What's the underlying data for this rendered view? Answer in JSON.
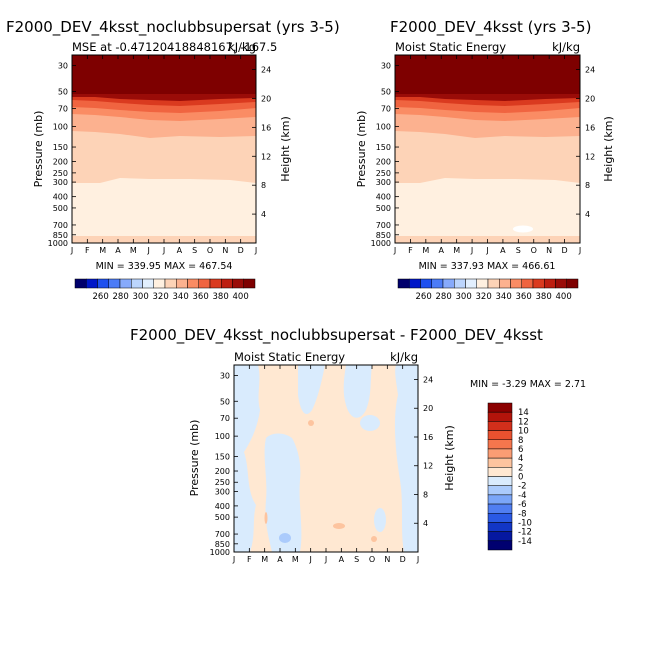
{
  "chart_data": [
    {
      "type": "heatmap",
      "title": "F2000_DEV_4ksst_noclubbsupersat (yrs 3-5)",
      "subtitle_left": "MSE at -0.47120418848167,   -167.5",
      "subtitle_right": "kJ/kg",
      "ylabel": "Pressure (mb)",
      "ylabel_right": "Height (km)",
      "minmax": "MIN = 339.95   MAX = 467.54",
      "x_ticks": [
        "J",
        "F",
        "M",
        "A",
        "M",
        "J",
        "J",
        "A",
        "S",
        "O",
        "N",
        "D",
        "J"
      ],
      "y_ticks": [
        30,
        50,
        70,
        100,
        150,
        200,
        250,
        300,
        400,
        500,
        700,
        850,
        1000
      ],
      "y_ticks_right": [
        24,
        20,
        16,
        12,
        8,
        4
      ],
      "colorbar_ticks": [
        260,
        280,
        300,
        320,
        340,
        360,
        380,
        400
      ],
      "colorbar_colors": [
        "#00006b",
        "#0017c8",
        "#1e50ef",
        "#4c7cf7",
        "#87aafb",
        "#bcd5fd",
        "#e2effe",
        "#fff0e0",
        "#fdd3b7",
        "#fcb18f",
        "#fa8c64",
        "#f06440",
        "#da3a1f",
        "#bd1e10",
        "#9a0c08",
        "#7e0000"
      ]
    },
    {
      "type": "heatmap",
      "title": "F2000_DEV_4ksst (yrs 3-5)",
      "subtitle_left": "Moist Static Energy",
      "subtitle_right": "kJ/kg",
      "ylabel": "Pressure (mb)",
      "ylabel_right": "Height (km)",
      "minmax": "MIN = 337.93   MAX = 466.61",
      "x_ticks": [
        "J",
        "F",
        "M",
        "A",
        "M",
        "J",
        "J",
        "A",
        "S",
        "O",
        "N",
        "D",
        "J"
      ],
      "y_ticks": [
        30,
        50,
        70,
        100,
        150,
        200,
        250,
        300,
        400,
        500,
        700,
        850,
        1000
      ],
      "y_ticks_right": [
        24,
        20,
        16,
        12,
        8,
        4
      ],
      "colorbar_ticks": [
        260,
        280,
        300,
        320,
        340,
        360,
        380,
        400
      ],
      "colorbar_colors": [
        "#00006b",
        "#0017c8",
        "#1e50ef",
        "#4c7cf7",
        "#87aafb",
        "#bcd5fd",
        "#e2effe",
        "#fff0e0",
        "#fdd3b7",
        "#fcb18f",
        "#fa8c64",
        "#f06440",
        "#da3a1f",
        "#bd1e10",
        "#9a0c08",
        "#7e0000"
      ]
    },
    {
      "type": "heatmap",
      "title": "F2000_DEV_4ksst_noclubbsupersat - F2000_DEV_4ksst",
      "subtitle_left": "Moist Static Energy",
      "subtitle_right": "kJ/kg",
      "ylabel": "Pressure (mb)",
      "ylabel_right": "Height (km)",
      "minmax": "MIN =  -3.29  MAX =    2.71",
      "x_ticks": [
        "J",
        "F",
        "M",
        "A",
        "M",
        "J",
        "J",
        "A",
        "S",
        "O",
        "N",
        "D",
        "J"
      ],
      "y_ticks": [
        30,
        50,
        70,
        100,
        150,
        200,
        250,
        300,
        400,
        500,
        700,
        850,
        1000
      ],
      "y_ticks_right": [
        24,
        20,
        16,
        12,
        8,
        4
      ],
      "colorbar_ticks": [
        14,
        12,
        10,
        8,
        6,
        4,
        2,
        0,
        -2,
        -4,
        -6,
        -8,
        -10,
        -12,
        -14
      ],
      "colorbar_colors": [
        "#8b0000",
        "#b3140b",
        "#d22f1b",
        "#e8512f",
        "#f5764d",
        "#fb9d74",
        "#fdc49f",
        "#ffe8d2",
        "#d9ebfd",
        "#abcbfc",
        "#7ba6f8",
        "#507ef1",
        "#2a59e4",
        "#1236c6",
        "#0518a0",
        "#000070"
      ]
    }
  ]
}
